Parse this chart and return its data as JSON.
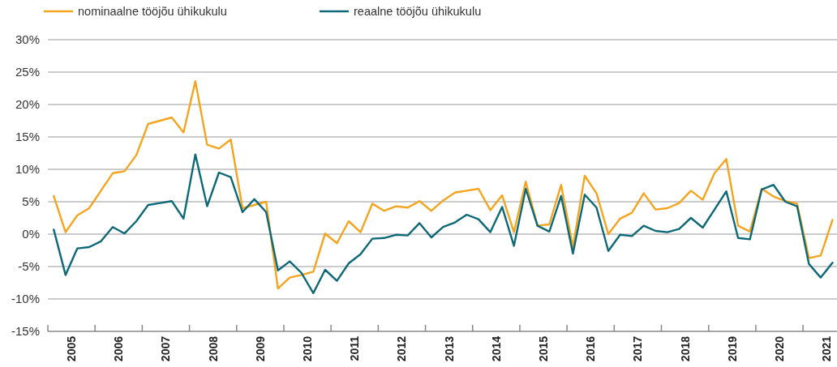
{
  "chart_data": {
    "type": "line",
    "legend": "top left",
    "grid": "y",
    "line_style": "solid",
    "marker": "none",
    "x": [
      2005.125,
      2005.375,
      2005.625,
      2005.875,
      2006.125,
      2006.375,
      2006.625,
      2006.875,
      2007.125,
      2007.375,
      2007.625,
      2007.875,
      2008.125,
      2008.375,
      2008.625,
      2008.875,
      2009.125,
      2009.375,
      2009.625,
      2009.875,
      2010.125,
      2010.375,
      2010.625,
      2010.875,
      2011.125,
      2011.375,
      2011.625,
      2011.875,
      2012.125,
      2012.375,
      2012.625,
      2012.875,
      2013.125,
      2013.375,
      2013.625,
      2013.875,
      2014.125,
      2014.375,
      2014.625,
      2014.875,
      2015.125,
      2015.375,
      2015.625,
      2015.875,
      2016.125,
      2016.375,
      2016.625,
      2016.875,
      2017.125,
      2017.375,
      2017.625,
      2017.875,
      2018.125,
      2018.375,
      2018.625,
      2018.875,
      2019.125,
      2019.375,
      2019.625,
      2019.875,
      2020.125,
      2020.375,
      2020.625,
      2020.875,
      2021.125,
      2021.375,
      2021.625
    ],
    "series": [
      {
        "name": "nominaalne tööjõu ühikukulu",
        "color": "#f4a41e",
        "values": [
          5.9,
          0.3,
          2.9,
          4.0,
          6.7,
          9.4,
          9.7,
          12.2,
          17.0,
          17.5,
          18.0,
          15.7,
          23.6,
          13.8,
          13.2,
          14.6,
          4.0,
          4.5,
          5.0,
          -8.4,
          -6.7,
          -6.3,
          -5.8,
          0.1,
          -1.4,
          2.0,
          0.3,
          4.7,
          3.6,
          4.3,
          4.1,
          5.1,
          3.6,
          5.2,
          6.4,
          6.7,
          7.0,
          3.7,
          6.0,
          0.3,
          8.1,
          1.3,
          1.5,
          7.6,
          -2.0,
          9.0,
          6.3,
          0.0,
          2.4,
          3.3,
          6.3,
          3.8,
          4.0,
          4.8,
          6.7,
          5.3,
          9.4,
          11.6,
          1.3,
          0.4,
          7.0,
          5.8,
          5.1,
          4.7,
          -3.7,
          -3.3,
          2.2
        ]
      },
      {
        "name": "reaalne tööjõu ühikukulu",
        "color": "#0d6878",
        "values": [
          0.7,
          -6.3,
          -2.2,
          -2.0,
          -1.1,
          1.1,
          0.1,
          2.0,
          4.5,
          4.8,
          5.1,
          2.4,
          12.3,
          4.3,
          9.5,
          8.8,
          3.4,
          5.4,
          3.4,
          -5.6,
          -4.2,
          -6.0,
          -9.1,
          -5.5,
          -7.2,
          -4.5,
          -3.1,
          -0.7,
          -0.6,
          -0.1,
          -0.2,
          1.7,
          -0.5,
          1.1,
          1.8,
          3.0,
          2.3,
          0.3,
          4.2,
          -1.8,
          7.0,
          1.3,
          0.4,
          5.9,
          -3.0,
          6.1,
          4.1,
          -2.6,
          -0.1,
          -0.3,
          1.3,
          0.5,
          0.3,
          0.8,
          2.5,
          1.0,
          3.8,
          6.6,
          -0.6,
          -0.8,
          6.9,
          7.6,
          5.0,
          4.3,
          -4.6,
          -6.7,
          -4.4
        ]
      }
    ],
    "ylim": [
      -15,
      30
    ],
    "yticks": [
      {
        "value": -15,
        "label": "-15%"
      },
      {
        "value": -10,
        "label": "-10%"
      },
      {
        "value": -5,
        "label": "-5%"
      },
      {
        "value": 0,
        "label": "0%"
      },
      {
        "value": 5,
        "label": "5%"
      },
      {
        "value": 10,
        "label": "10%"
      },
      {
        "value": 15,
        "label": "15%"
      },
      {
        "value": 20,
        "label": "20%"
      },
      {
        "value": 25,
        "label": "25%"
      },
      {
        "value": 30,
        "label": "30%"
      }
    ],
    "xlim": [
      2005,
      2021.72
    ],
    "xticks": [
      {
        "value": 2005,
        "label": null
      },
      {
        "value": 2005.5,
        "label": "2005"
      },
      {
        "value": 2006,
        "label": null
      },
      {
        "value": 2006.5,
        "label": "2006"
      },
      {
        "value": 2007,
        "label": null
      },
      {
        "value": 2007.5,
        "label": "2007"
      },
      {
        "value": 2008,
        "label": null
      },
      {
        "value": 2008.5,
        "label": "2008"
      },
      {
        "value": 2009,
        "label": null
      },
      {
        "value": 2009.5,
        "label": "2009"
      },
      {
        "value": 2010,
        "label": null
      },
      {
        "value": 2010.5,
        "label": "2010"
      },
      {
        "value": 2011,
        "label": null
      },
      {
        "value": 2011.5,
        "label": "2011"
      },
      {
        "value": 2012,
        "label": null
      },
      {
        "value": 2012.5,
        "label": "2012"
      },
      {
        "value": 2013,
        "label": null
      },
      {
        "value": 2013.5,
        "label": "2013"
      },
      {
        "value": 2014,
        "label": null
      },
      {
        "value": 2014.5,
        "label": "2014"
      },
      {
        "value": 2015,
        "label": null
      },
      {
        "value": 2015.5,
        "label": "2015"
      },
      {
        "value": 2016,
        "label": null
      },
      {
        "value": 2016.5,
        "label": "2016"
      },
      {
        "value": 2017,
        "label": null
      },
      {
        "value": 2017.5,
        "label": "2017"
      },
      {
        "value": 2018,
        "label": null
      },
      {
        "value": 2018.5,
        "label": "2018"
      },
      {
        "value": 2019,
        "label": null
      },
      {
        "value": 2019.5,
        "label": "2019"
      },
      {
        "value": 2020,
        "label": null
      },
      {
        "value": 2020.5,
        "label": "2020"
      },
      {
        "value": 2021,
        "label": null
      },
      {
        "value": 2021.5,
        "label": "2021"
      }
    ]
  }
}
